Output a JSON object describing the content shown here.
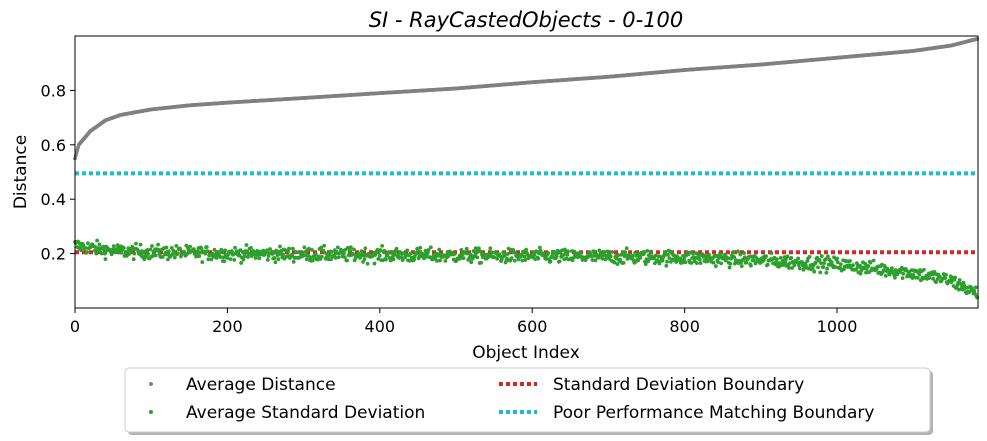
{
  "chart_data": {
    "type": "scatter",
    "title": "SI - RayCastedObjects - 0-100",
    "xlabel": "Object Index",
    "ylabel": "Distance",
    "xlim": [
      0,
      1185
    ],
    "ylim": [
      0.0,
      1.0
    ],
    "xticks": [
      0,
      200,
      400,
      600,
      800,
      1000
    ],
    "yticks": [
      0.2,
      0.4,
      0.6,
      0.8
    ],
    "xtick_labels": [
      "0",
      "200",
      "400",
      "600",
      "800",
      "1000"
    ],
    "ytick_labels": [
      "0.2",
      "0.4",
      "0.6",
      "0.8"
    ],
    "n_points": 1185,
    "grid": false,
    "legend_placement": "below",
    "series": [
      {
        "name": "Average Distance",
        "kind": "points",
        "color": "#808080",
        "anchors_x": [
          0,
          5,
          20,
          40,
          60,
          100,
          150,
          200,
          300,
          400,
          500,
          600,
          700,
          800,
          900,
          1000,
          1100,
          1150,
          1185
        ],
        "anchors_y": [
          0.55,
          0.6,
          0.65,
          0.69,
          0.71,
          0.73,
          0.745,
          0.755,
          0.772,
          0.79,
          0.807,
          0.83,
          0.85,
          0.875,
          0.895,
          0.92,
          0.945,
          0.965,
          0.99
        ]
      },
      {
        "name": "Average Standard Deviation",
        "kind": "points",
        "color": "#2ca02c",
        "anchors_x": [
          0,
          50,
          100,
          200,
          400,
          600,
          800,
          900,
          1000,
          1100,
          1150,
          1185
        ],
        "anchors_y": [
          0.23,
          0.21,
          0.205,
          0.2,
          0.195,
          0.19,
          0.185,
          0.175,
          0.16,
          0.13,
          0.1,
          0.05
        ],
        "spread": 0.045
      },
      {
        "name": "Standard Deviation Boundary",
        "kind": "hline",
        "color": "#d62728",
        "y": 0.205
      },
      {
        "name": "Poor Performance Matching Boundary",
        "kind": "hline",
        "color": "#17becf",
        "y": 0.495
      }
    ]
  }
}
